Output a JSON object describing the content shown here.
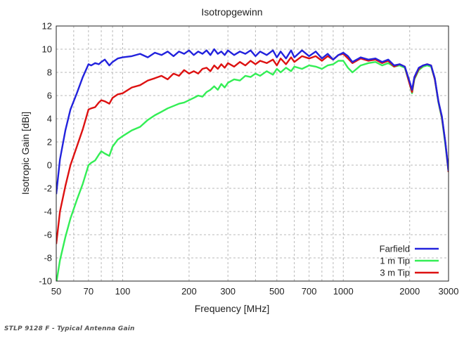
{
  "chart_data": {
    "type": "line",
    "title": "Isotropgewinn",
    "xlabel": "Frequency [MHz]",
    "ylabel": "Isotropic Gain [dBi]",
    "x_scale": "log",
    "xlim": [
      50,
      3000
    ],
    "ylim": [
      -10,
      12
    ],
    "x_ticks": [
      50,
      70,
      100,
      200,
      300,
      500,
      700,
      1000,
      2000,
      3000
    ],
    "y_ticks": [
      -10,
      -8,
      -6,
      -4,
      -2,
      0,
      2,
      4,
      6,
      8,
      10,
      12
    ],
    "grid": true,
    "legend_position": "bottom-right",
    "series": [
      {
        "name": "Farfield",
        "color": "#2222dd",
        "x": [
          50,
          52,
          55,
          58,
          62,
          66,
          70,
          72,
          75,
          78,
          80,
          83,
          87,
          90,
          95,
          100,
          110,
          120,
          130,
          140,
          150,
          160,
          170,
          180,
          190,
          200,
          210,
          220,
          230,
          240,
          250,
          260,
          270,
          280,
          290,
          300,
          320,
          340,
          360,
          380,
          400,
          420,
          450,
          480,
          500,
          520,
          550,
          580,
          600,
          650,
          700,
          750,
          800,
          850,
          900,
          950,
          1000,
          1050,
          1100,
          1200,
          1300,
          1400,
          1500,
          1600,
          1700,
          1800,
          1900,
          2000,
          2050,
          2100,
          2200,
          2300,
          2400,
          2500,
          2600,
          2700,
          2800,
          2900,
          3000
        ],
        "y": [
          -2.5,
          0.5,
          3.0,
          4.8,
          6.2,
          7.6,
          8.7,
          8.6,
          8.8,
          8.7,
          8.9,
          9.1,
          8.6,
          8.9,
          9.2,
          9.3,
          9.4,
          9.6,
          9.3,
          9.7,
          9.5,
          9.8,
          9.4,
          9.8,
          9.6,
          9.9,
          9.5,
          9.8,
          9.6,
          9.9,
          9.5,
          10.0,
          9.6,
          9.8,
          9.5,
          9.9,
          9.5,
          9.8,
          9.6,
          9.9,
          9.4,
          9.8,
          9.5,
          9.9,
          9.3,
          9.8,
          9.2,
          9.9,
          9.3,
          9.9,
          9.4,
          9.8,
          9.2,
          9.6,
          9.1,
          9.5,
          9.7,
          9.4,
          8.9,
          9.3,
          9.1,
          9.2,
          8.9,
          9.1,
          8.6,
          8.7,
          8.5,
          7.2,
          6.5,
          7.6,
          8.4,
          8.6,
          8.7,
          8.6,
          7.5,
          5.5,
          4.2,
          2.0,
          -0.5
        ]
      },
      {
        "name": "1 m Tip",
        "color": "#33ee55",
        "x": [
          50,
          52,
          55,
          58,
          62,
          66,
          70,
          72,
          75,
          78,
          80,
          83,
          87,
          90,
          95,
          100,
          110,
          120,
          130,
          140,
          150,
          160,
          170,
          180,
          190,
          200,
          210,
          220,
          230,
          240,
          250,
          260,
          270,
          280,
          290,
          300,
          320,
          340,
          360,
          380,
          400,
          420,
          450,
          480,
          500,
          520,
          550,
          580,
          600,
          650,
          700,
          750,
          800,
          850,
          900,
          950,
          1000,
          1050,
          1100,
          1200,
          1300,
          1400,
          1500,
          1600,
          1700,
          1800,
          1900,
          2000,
          2050,
          2100,
          2200,
          2300,
          2400,
          2500,
          2600,
          2700,
          2800,
          2900,
          3000
        ],
        "y": [
          -10.2,
          -8.2,
          -6.2,
          -4.6,
          -3.0,
          -1.6,
          0.0,
          0.2,
          0.4,
          0.9,
          1.2,
          1.0,
          0.8,
          1.6,
          2.2,
          2.5,
          3.0,
          3.3,
          3.9,
          4.3,
          4.6,
          4.9,
          5.1,
          5.3,
          5.4,
          5.6,
          5.8,
          6.0,
          5.9,
          6.3,
          6.5,
          6.8,
          6.5,
          7.0,
          6.7,
          7.1,
          7.4,
          7.3,
          7.7,
          7.6,
          7.9,
          7.7,
          8.1,
          7.8,
          8.3,
          8.0,
          8.4,
          8.1,
          8.5,
          8.3,
          8.6,
          8.5,
          8.3,
          8.6,
          8.7,
          9.0,
          9.0,
          8.4,
          8.0,
          8.6,
          8.8,
          8.9,
          8.6,
          8.8,
          8.5,
          8.6,
          8.4,
          7.0,
          6.2,
          7.4,
          8.2,
          8.5,
          8.6,
          8.5,
          7.4,
          5.4,
          4.0,
          1.8,
          -0.6
        ]
      },
      {
        "name": "3 m Tip",
        "color": "#dd1111",
        "x": [
          50,
          52,
          55,
          58,
          62,
          66,
          70,
          72,
          75,
          78,
          80,
          83,
          87,
          90,
          95,
          100,
          110,
          120,
          130,
          140,
          150,
          160,
          170,
          180,
          190,
          200,
          210,
          220,
          230,
          240,
          250,
          260,
          270,
          280,
          290,
          300,
          320,
          340,
          360,
          380,
          400,
          420,
          450,
          480,
          500,
          520,
          550,
          580,
          600,
          650,
          700,
          750,
          800,
          850,
          900,
          950,
          1000,
          1050,
          1100,
          1200,
          1300,
          1400,
          1500,
          1600,
          1700,
          1800,
          1900,
          2000,
          2050,
          2100,
          2200,
          2300,
          2400,
          2500,
          2600,
          2700,
          2800,
          2900,
          3000
        ],
        "y": [
          -6.8,
          -4.0,
          -1.8,
          0.0,
          1.6,
          3.1,
          4.8,
          4.9,
          5.0,
          5.4,
          5.6,
          5.5,
          5.3,
          5.8,
          6.1,
          6.2,
          6.7,
          6.9,
          7.3,
          7.5,
          7.7,
          7.4,
          7.9,
          7.7,
          8.2,
          7.9,
          8.1,
          7.9,
          8.3,
          8.4,
          8.1,
          8.6,
          8.3,
          8.7,
          8.4,
          8.8,
          8.5,
          8.9,
          8.6,
          9.0,
          8.7,
          9.0,
          8.8,
          9.1,
          8.6,
          9.2,
          8.7,
          9.3,
          8.9,
          9.4,
          9.2,
          9.4,
          9.0,
          9.4,
          9.1,
          9.5,
          9.6,
          9.2,
          8.8,
          9.2,
          9.0,
          9.1,
          8.8,
          9.0,
          8.5,
          8.7,
          8.5,
          7.0,
          6.3,
          7.5,
          8.3,
          8.6,
          8.7,
          8.6,
          7.4,
          5.5,
          4.1,
          2.0,
          -0.6
        ]
      }
    ]
  },
  "caption": "STLP 9128 F - Typical Antenna Gain"
}
